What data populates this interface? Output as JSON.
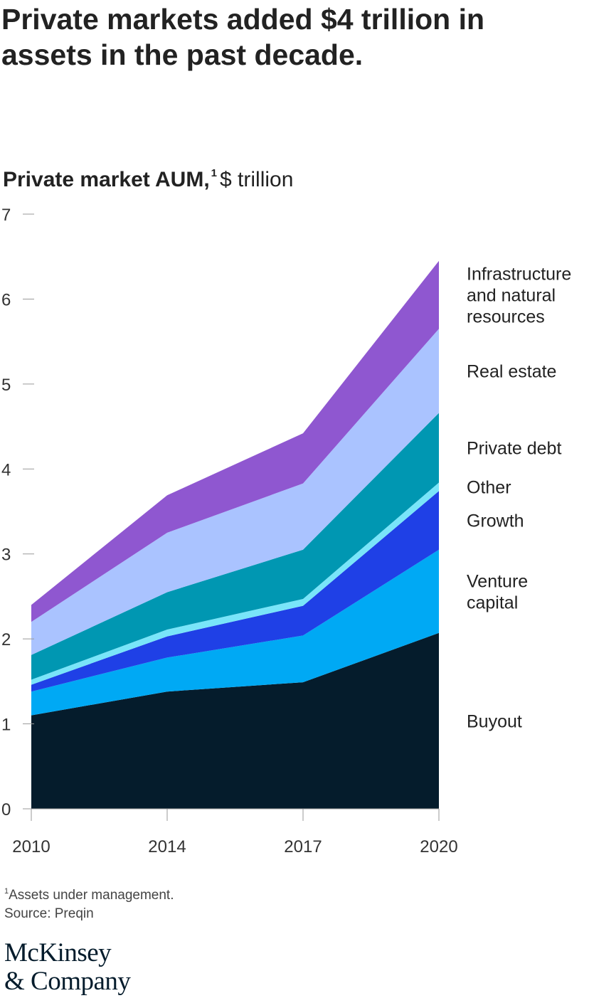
{
  "title": "Private markets added $4 trillion in assets in the past decade.",
  "subtitle": {
    "bold": "Private market AUM,",
    "footnote_mark": "1",
    "unit": "$ trillion"
  },
  "footnotes": {
    "mark": "1",
    "definition": "Assets under management.",
    "source": "Source: Preqin"
  },
  "logo": {
    "line1": "McKinsey",
    "line2": "& Company"
  },
  "colors": {
    "buyout": "#051c2c",
    "venture_capital": "#00a9f4",
    "growth": "#1f40e6",
    "other": "#79e5f9",
    "private_debt": "#0097b2",
    "real_estate": "#aac3ff",
    "infrastructure": "#8f57d0",
    "axis": "#999999",
    "text": "#222222"
  },
  "chart_data": {
    "type": "area",
    "stacked": true,
    "x": [
      "2010",
      "2014",
      "2017",
      "2020"
    ],
    "ylim": [
      0,
      7
    ],
    "yticks": [
      "0",
      "1",
      "2",
      "3",
      "4",
      "5",
      "6",
      "7"
    ],
    "legend_placement": "right",
    "series": [
      {
        "name": "Buyout",
        "label_lines": [
          "Buyout"
        ],
        "color_key": "buyout",
        "values": [
          1.1,
          1.38,
          1.49,
          2.07
        ]
      },
      {
        "name": "Venture capital",
        "label_lines": [
          "Venture",
          "capital"
        ],
        "color_key": "venture_capital",
        "values": [
          0.28,
          0.4,
          0.55,
          0.98
        ]
      },
      {
        "name": "Growth",
        "label_lines": [
          "Growth"
        ],
        "color_key": "growth",
        "values": [
          0.08,
          0.25,
          0.35,
          0.69
        ]
      },
      {
        "name": "Other",
        "label_lines": [
          "Other"
        ],
        "color_key": "other",
        "values": [
          0.06,
          0.08,
          0.08,
          0.1
        ]
      },
      {
        "name": "Private debt",
        "label_lines": [
          "Private debt"
        ],
        "color_key": "private_debt",
        "values": [
          0.29,
          0.44,
          0.58,
          0.82
        ]
      },
      {
        "name": "Real estate",
        "label_lines": [
          "Real estate"
        ],
        "color_key": "real_estate",
        "values": [
          0.39,
          0.7,
          0.78,
          0.99
        ]
      },
      {
        "name": "Infrastructure and natural resources",
        "label_lines": [
          "Infrastructure",
          "and natural",
          "resources"
        ],
        "color_key": "infrastructure",
        "values": [
          0.2,
          0.44,
          0.59,
          0.8
        ]
      }
    ]
  }
}
